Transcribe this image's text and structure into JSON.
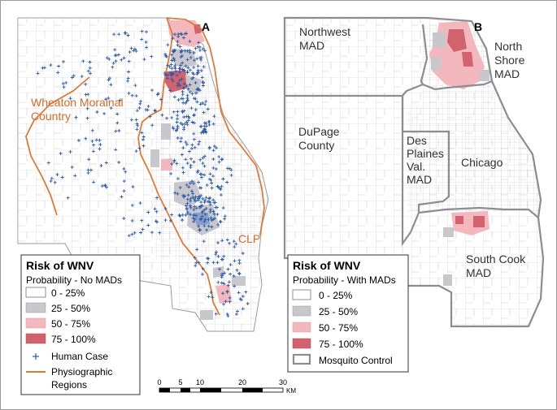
{
  "panel_a": {
    "letter": "A",
    "labels": {
      "wheaton_line1": "Wheaton Morainal",
      "wheaton_line2": "Country",
      "clp": "CLP"
    },
    "legend": {
      "title": "Risk of WNV",
      "subtitle": "Probability - No MADs",
      "items": [
        {
          "label": "0 - 25%",
          "color": "#ffffff"
        },
        {
          "label": "25 - 50%",
          "color": "#c8c8cc"
        },
        {
          "label": "50 - 75%",
          "color": "#f2b8bd"
        },
        {
          "label": "75 - 100%",
          "color": "#d2626e"
        },
        {
          "label": "Human Case",
          "icon": "plus-icon",
          "color": "#2b5aa8"
        },
        {
          "label": "Physiographic",
          "label2": "Regions",
          "color": "#e07a3a"
        }
      ]
    }
  },
  "panel_b": {
    "letter": "B",
    "districts": {
      "northwest_line1": "Northwest",
      "northwest_line2": "MAD",
      "northshore_line1": "North",
      "northshore_line2": "Shore",
      "northshore_line3": "MAD",
      "dupage_line1": "DuPage",
      "dupage_line2": "County",
      "desplaines_line1": "Des",
      "desplaines_line2": "Plaines",
      "desplaines_line3": "Val.",
      "desplaines_line4": "MAD",
      "chicago": "Chicago",
      "southcook_line1": "South Cook",
      "southcook_line2": "MAD"
    },
    "legend": {
      "title": "Risk of WNV",
      "subtitle": "Probability - With MADs",
      "items": [
        {
          "label": "0 - 25%",
          "color": "#ffffff"
        },
        {
          "label": "25 - 50%",
          "color": "#c8c8cc"
        },
        {
          "label": "50 - 75%",
          "color": "#f2b8bd"
        },
        {
          "label": "75 - 100%",
          "color": "#d2626e"
        },
        {
          "label": "Mosquito Control",
          "color": "#8c8c94"
        }
      ]
    }
  },
  "scalebar": {
    "ticks": [
      "0",
      "5",
      "10",
      "20",
      "30"
    ],
    "unit": "KM"
  }
}
